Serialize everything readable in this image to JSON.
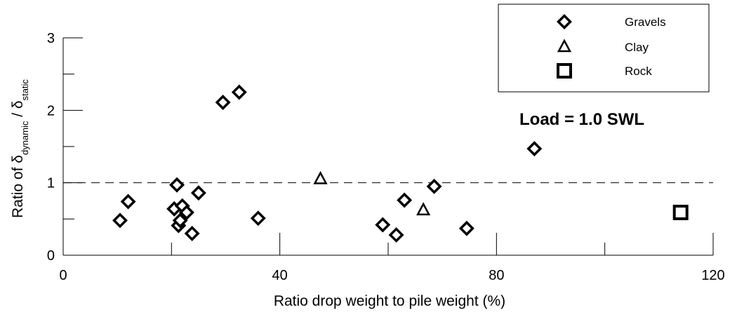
{
  "chart_data": {
    "type": "scatter",
    "xlabel": "Ratio drop weight to pile weight (%)",
    "ylabel": {
      "prefix": "Ratio of δ",
      "sub1": "dynamic",
      "mid": " / δ",
      "sub2": "static"
    },
    "xlim": [
      0,
      120
    ],
    "ylim": [
      0,
      3
    ],
    "x_ticks": [
      0,
      40,
      80,
      120
    ],
    "x_tick_labels": [
      "0",
      "40",
      "80",
      "120"
    ],
    "y_ticks": [
      0,
      1,
      2,
      3
    ],
    "y_tick_labels": [
      "0",
      "1",
      "2",
      "3"
    ],
    "reference_line": {
      "y": 1.0,
      "style": "dashed"
    },
    "annotation": "Load = 1.0 SWL",
    "legend_position": "top-right",
    "grid": false,
    "series": [
      {
        "name": "Gravels",
        "marker": "diamond",
        "points": [
          {
            "x": 10.5,
            "y": 0.48
          },
          {
            "x": 12.0,
            "y": 0.74
          },
          {
            "x": 20.5,
            "y": 0.64
          },
          {
            "x": 21.0,
            "y": 0.97
          },
          {
            "x": 21.3,
            "y": 0.41
          },
          {
            "x": 21.6,
            "y": 0.48
          },
          {
            "x": 22.0,
            "y": 0.68
          },
          {
            "x": 22.8,
            "y": 0.59
          },
          {
            "x": 23.8,
            "y": 0.3
          },
          {
            "x": 25.0,
            "y": 0.86
          },
          {
            "x": 29.5,
            "y": 2.11
          },
          {
            "x": 32.5,
            "y": 2.25
          },
          {
            "x": 36.0,
            "y": 0.51
          },
          {
            "x": 59.0,
            "y": 0.42
          },
          {
            "x": 61.5,
            "y": 0.28
          },
          {
            "x": 63.0,
            "y": 0.76
          },
          {
            "x": 68.5,
            "y": 0.95
          },
          {
            "x": 74.5,
            "y": 0.37
          },
          {
            "x": 87.0,
            "y": 1.47
          }
        ]
      },
      {
        "name": "Clay",
        "marker": "triangle",
        "points": [
          {
            "x": 47.5,
            "y": 1.05
          },
          {
            "x": 66.5,
            "y": 0.62
          }
        ]
      },
      {
        "name": "Rock",
        "marker": "square",
        "points": [
          {
            "x": 114.0,
            "y": 0.59
          }
        ]
      }
    ]
  }
}
